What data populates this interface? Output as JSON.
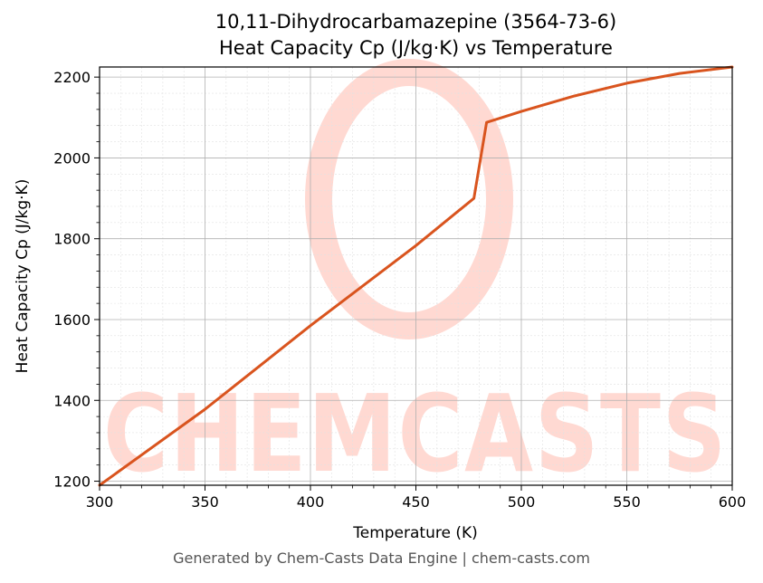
{
  "title_lines": [
    "10,11-Dihydrocarbamazepine (3564-73-6)",
    "Heat Capacity Cp (J/kg·K) vs Temperature"
  ],
  "footer": "Generated by Chem-Casts Data Engine | chem-casts.com",
  "watermark": "CHEMCASTS",
  "colors": {
    "line": "#d9541e",
    "grid_major": "#b0b0b0",
    "grid_minor": "#e2e2e2",
    "watermark": "#ffd9d2"
  },
  "chart_data": {
    "type": "line",
    "xlabel": "Temperature (K)",
    "ylabel": "Heat Capacity Cp (J/kg·K)",
    "xlim": [
      300,
      600
    ],
    "ylim": [
      1190,
      2225
    ],
    "xticks": [
      300,
      350,
      400,
      450,
      500,
      550,
      600
    ],
    "yticks": [
      1200,
      1400,
      1600,
      1800,
      2000,
      2200
    ],
    "grid": true,
    "minor_grid": true,
    "legend": "none",
    "series": [
      {
        "x": [
          300,
          350,
          400,
          450,
          477.5,
          483.5,
          500,
          525,
          550,
          575,
          600
        ],
        "y": [
          1190,
          1378,
          1585,
          1783,
          1900,
          2088,
          2115,
          2153,
          2185,
          2209,
          2225
        ]
      }
    ]
  }
}
